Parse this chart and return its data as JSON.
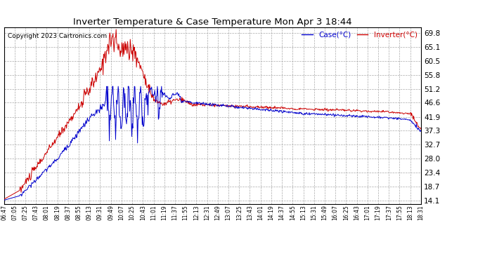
{
  "title": "Inverter Temperature & Case Temperature Mon Apr 3 18:44",
  "copyright": "Copyright 2023 Cartronics.com",
  "legend_case": "Case(°C)",
  "legend_inverter": "Inverter(°C)",
  "yticks": [
    14.1,
    18.7,
    23.4,
    28.0,
    32.7,
    37.3,
    41.9,
    46.6,
    51.2,
    55.8,
    60.5,
    65.1,
    69.8
  ],
  "ylim": [
    13.0,
    71.5
  ],
  "xtick_labels": [
    "06:47",
    "07:05",
    "07:25",
    "07:43",
    "08:01",
    "08:19",
    "08:37",
    "08:55",
    "09:13",
    "09:31",
    "09:49",
    "10:07",
    "10:25",
    "10:43",
    "11:01",
    "11:19",
    "11:37",
    "11:55",
    "12:13",
    "12:31",
    "12:49",
    "13:07",
    "13:25",
    "13:43",
    "14:01",
    "14:19",
    "14:37",
    "14:55",
    "15:13",
    "15:31",
    "15:49",
    "16:07",
    "16:25",
    "16:43",
    "17:01",
    "17:19",
    "17:37",
    "17:55",
    "18:13",
    "18:31"
  ],
  "bg_color": "#ffffff",
  "grid_color": "#aaaaaa",
  "case_color": "#0000cc",
  "inverter_color": "#cc0000",
  "title_color": "#000000",
  "copyright_color": "#000000",
  "legend_case_color": "#0000cc",
  "legend_inverter_color": "#cc0000"
}
